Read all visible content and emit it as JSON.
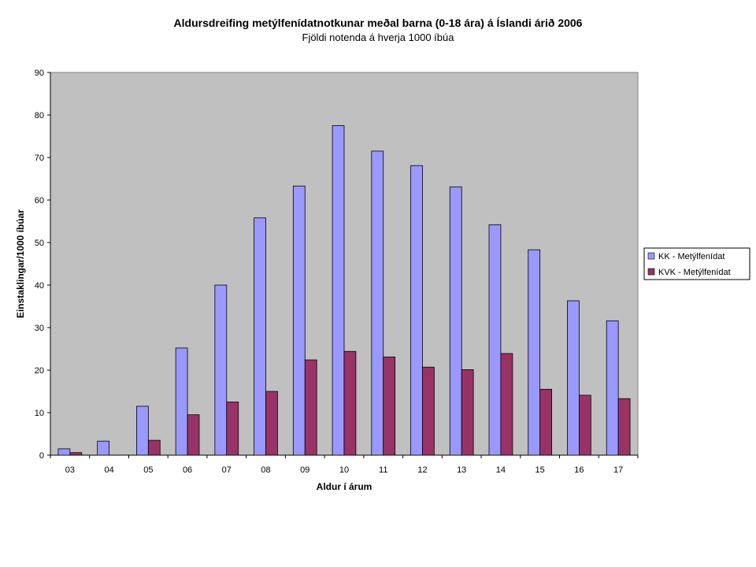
{
  "chart_data": {
    "type": "bar",
    "title": "Aldursdreifing metýlfenídatnotkunar meðal barna (0-18 ára) á Íslandi árið 2006",
    "subtitle": "Fjöldi notenda á hverja 1000 íbúa",
    "xlabel": "Aldur í árum",
    "ylabel": "Einstaklingar/1000 íbúar",
    "ylim": [
      0,
      90
    ],
    "yticks": [
      0,
      10,
      20,
      30,
      40,
      50,
      60,
      70,
      80,
      90
    ],
    "grid": false,
    "legend_position": "right",
    "plot_background": "#c0c0c0",
    "categories": [
      "03",
      "04",
      "05",
      "06",
      "07",
      "08",
      "09",
      "10",
      "11",
      "12",
      "13",
      "14",
      "15",
      "16",
      "17"
    ],
    "series": [
      {
        "name": "KK - Metýlfenídat",
        "color": "#9999ff",
        "values": [
          1.5,
          3.3,
          11.5,
          25.2,
          40.0,
          55.8,
          63.3,
          77.5,
          71.5,
          68.1,
          63.1,
          54.2,
          48.3,
          36.3,
          31.6
        ]
      },
      {
        "name": "KVK - Metýlfenídat",
        "color": "#993366",
        "values": [
          0.6,
          0,
          3.5,
          9.5,
          12.5,
          15.0,
          22.4,
          24.4,
          23.1,
          20.7,
          20.1,
          23.9,
          15.5,
          14.1,
          13.3
        ]
      }
    ]
  }
}
